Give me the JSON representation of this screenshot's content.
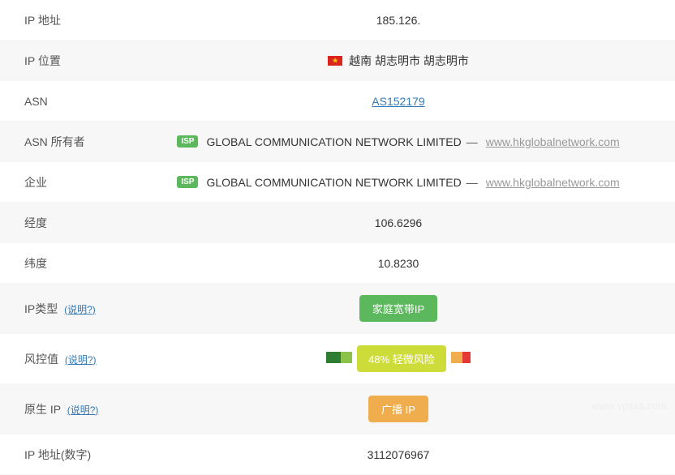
{
  "rows": {
    "ip_address": {
      "label": "IP 地址",
      "value": "185.126."
    },
    "ip_location": {
      "label": "IP 位置",
      "value": "越南 胡志明市 胡志明市"
    },
    "asn": {
      "label": "ASN",
      "link": "AS152179"
    },
    "asn_owner": {
      "label": "ASN 所有者",
      "isp_badge": "ISP",
      "org": "GLOBAL COMMUNICATION NETWORK LIMITED",
      "url": "www.hkglobalnetwork.com"
    },
    "enterprise": {
      "label": "企业",
      "isp_badge": "ISP",
      "org": "GLOBAL COMMUNICATION NETWORK LIMITED",
      "url": "www.hkglobalnetwork.com"
    },
    "longitude": {
      "label": "经度",
      "value": "106.6296"
    },
    "latitude": {
      "label": "纬度",
      "value": "10.8230"
    },
    "ip_type": {
      "label": "IP类型",
      "help": "(说明?)",
      "badge": "家庭宽带IP"
    },
    "risk": {
      "label": "风控值",
      "help": "(说明?)",
      "pill_text": "48%  轻微风险",
      "pre_blocks": [
        {
          "color": "#2e7d32",
          "width": 18
        },
        {
          "color": "#8bc34a",
          "width": 14
        }
      ],
      "post_blocks": [
        {
          "color": "#f0ad4e",
          "width": 14
        },
        {
          "color": "#e53935",
          "width": 10
        }
      ]
    },
    "native_ip": {
      "label": "原生 IP",
      "help": "(说明?)",
      "badge": "广播 IP"
    },
    "ip_numeric": {
      "label": "IP 地址(数字)",
      "value": "3112076967"
    }
  },
  "colors": {
    "link": "#337ab7",
    "badge_green": "#5cb85c",
    "badge_orange": "#f0ad4e",
    "risk_pill": "#cddc39"
  },
  "watermark": "www.vpsxs.com"
}
